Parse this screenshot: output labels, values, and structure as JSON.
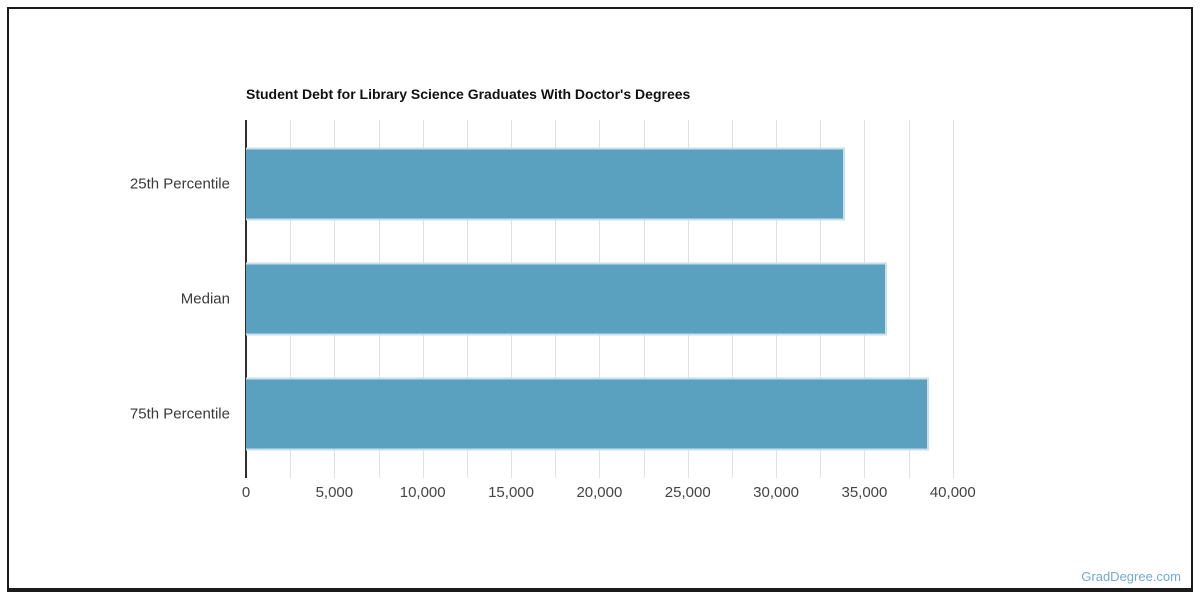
{
  "page": {
    "watermark": "GradDegree.com",
    "watermark_color": "#74aacb"
  },
  "chart_data": {
    "type": "bar",
    "orientation": "horizontal",
    "title": "Student Debt for Library Science Graduates With Doctor's Degrees",
    "categories": [
      "25th Percentile",
      "Median",
      "75th Percentile"
    ],
    "values": [
      33910,
      36270,
      38680
    ],
    "xlabel": "",
    "ylabel": "",
    "xlim": [
      0,
      40000
    ],
    "x_tick_step": 5000,
    "x_minor_step": 2500,
    "x_tick_labels": [
      "0",
      "5,000",
      "10,000",
      "15,000",
      "20,000",
      "25,000",
      "30,000",
      "35,000",
      "40,000"
    ],
    "grid": true,
    "legend": false,
    "bar_color": "#5aa0bf",
    "bar_border_color": "#c8e0ec",
    "axis_color": "#2e2e2e",
    "grid_color": "#e0e0e0",
    "tick_label_color": "#444444",
    "category_label_color": "#3a3a3a",
    "title_color": "#111111"
  }
}
